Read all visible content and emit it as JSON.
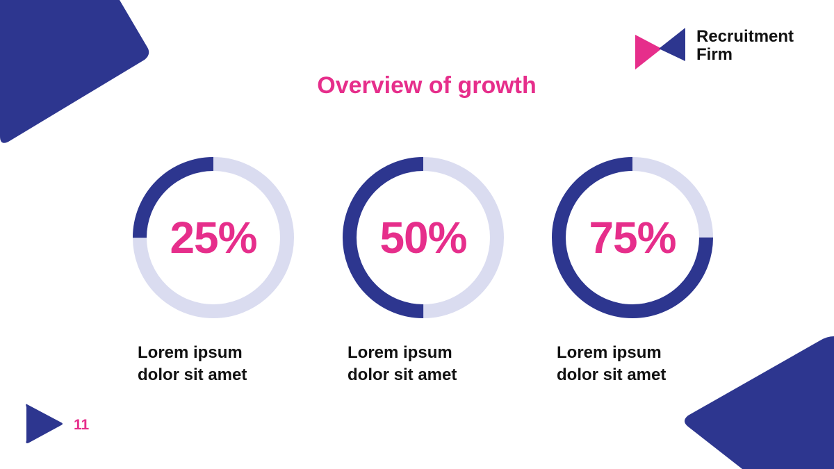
{
  "slide": {
    "title": "Overview of growth",
    "page_number": "11"
  },
  "brand": {
    "name_line1": "Recruitment",
    "name_line2": "Firm",
    "logo_icon": "bowtie-logo-icon"
  },
  "colors": {
    "primary_navy": "#2d368f",
    "accent_pink": "#e62e8b",
    "track_lavender": "#dadcf0",
    "text_dark": "#111111"
  },
  "chart_data": {
    "type": "donut",
    "items": [
      {
        "value": 25,
        "label": "25%",
        "caption": "Lorem ipsum\ndolor  sit amet"
      },
      {
        "value": 50,
        "label": "50%",
        "caption": "Lorem ipsum\ndolor  sit amet"
      },
      {
        "value": 75,
        "label": "75%",
        "caption": "Lorem ipsum\ndolor  sit amet"
      }
    ]
  }
}
